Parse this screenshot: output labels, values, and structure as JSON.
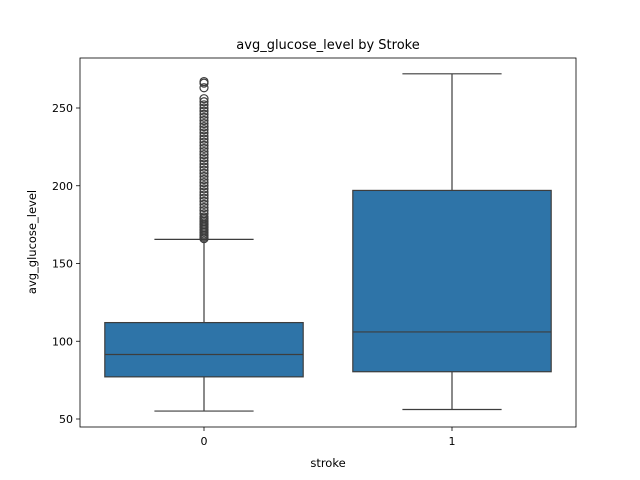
{
  "chart_data": {
    "type": "box",
    "title": "avg_glucose_level by Stroke",
    "xlabel": "stroke",
    "ylabel": "avg_glucose_level",
    "ylim": [
      45,
      280
    ],
    "yticks": [
      50,
      100,
      150,
      200,
      250
    ],
    "grid": false,
    "legend": "none",
    "colors": {
      "box_fill": "#2e74a8",
      "line": "#3d3d3d",
      "frame": "#000000"
    },
    "categories": [
      "0",
      "1"
    ],
    "boxes": [
      {
        "category": "0",
        "whisker_low": 55.1,
        "q1": 77.1,
        "median": 91.5,
        "q3": 112.0,
        "whisker_high": 165.5,
        "outliers": [
          166,
          167,
          168,
          169,
          170,
          171,
          172,
          173,
          174,
          175,
          176,
          177,
          178,
          179,
          180,
          182,
          184,
          186,
          188,
          190,
          192,
          194,
          196,
          198,
          200,
          202,
          204,
          206,
          208,
          210,
          212,
          214,
          216,
          218,
          220,
          222,
          224,
          226,
          228,
          230,
          232,
          234,
          236,
          238,
          240,
          242,
          244,
          246,
          248,
          250,
          252,
          254,
          256,
          263,
          266,
          267
        ]
      },
      {
        "category": "1",
        "whisker_low": 56.1,
        "q1": 80.4,
        "median": 106.0,
        "q3": 197.0,
        "whisker_high": 272.0,
        "outliers": []
      }
    ]
  }
}
